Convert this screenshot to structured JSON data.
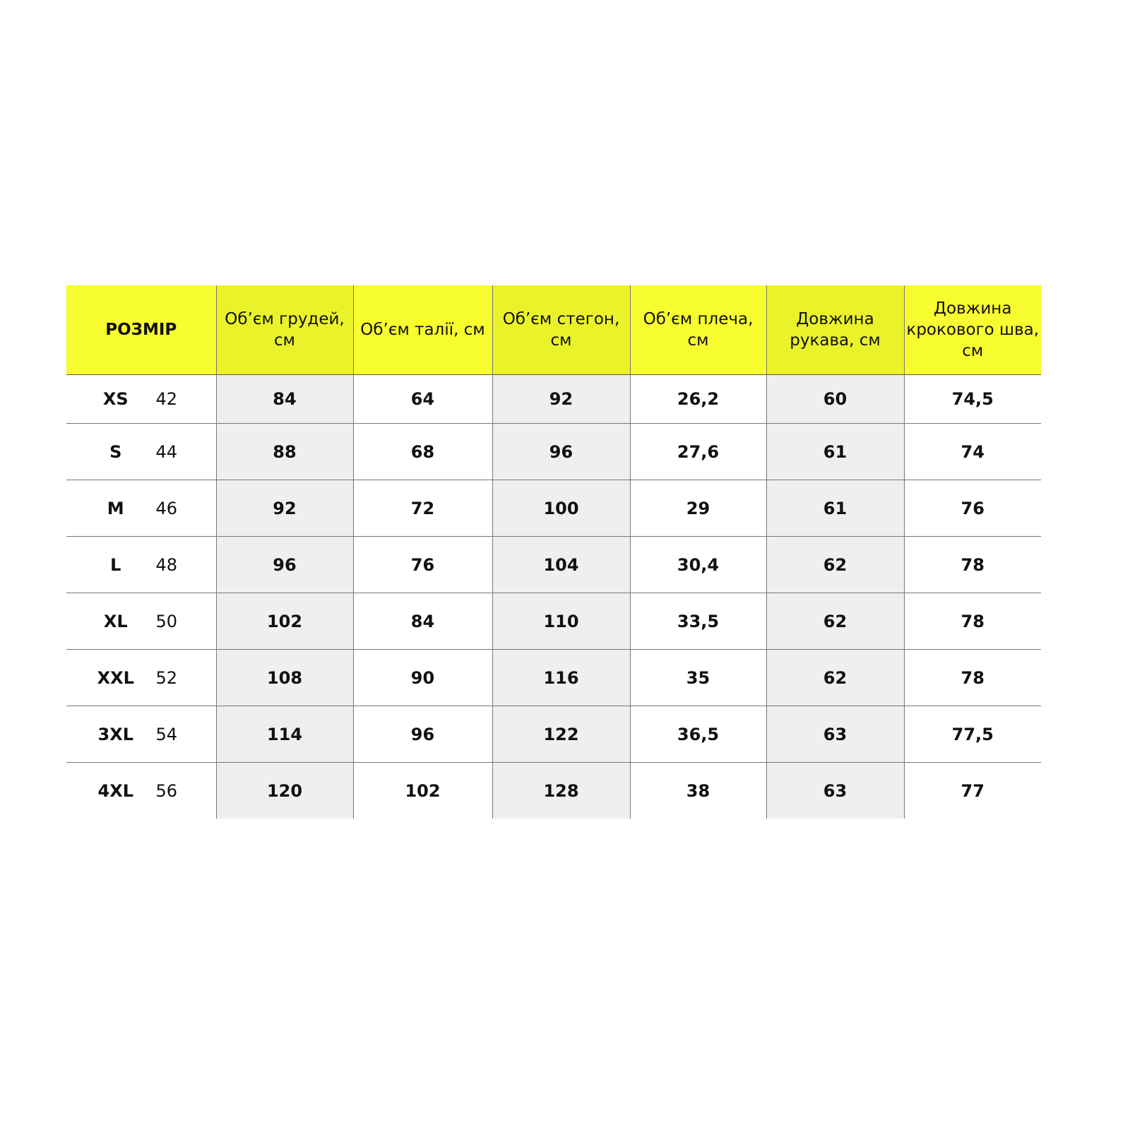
{
  "colors": {
    "header": "#f7fd2e",
    "header_alt": "#eaf32a",
    "cell_alt": "#efefef"
  },
  "headers": [
    "РОЗМІР",
    "Об’єм грудей, см",
    "Об’єм талії, см",
    "Об’єм стегон, см",
    "Об’єм плеча, см",
    "Довжина рукава, см",
    "Довжина крокового шва, см"
  ],
  "rows": [
    {
      "size": "XS",
      "ua": "42",
      "values": [
        "84",
        "64",
        "92",
        "26,2",
        "60",
        "74,5"
      ]
    },
    {
      "size": "S",
      "ua": "44",
      "values": [
        "88",
        "68",
        "96",
        "27,6",
        "61",
        "74"
      ]
    },
    {
      "size": "M",
      "ua": "46",
      "values": [
        "92",
        "72",
        "100",
        "29",
        "61",
        "76"
      ]
    },
    {
      "size": "L",
      "ua": "48",
      "values": [
        "96",
        "76",
        "104",
        "30,4",
        "62",
        "78"
      ]
    },
    {
      "size": "XL",
      "ua": "50",
      "values": [
        "102",
        "84",
        "110",
        "33,5",
        "62",
        "78"
      ]
    },
    {
      "size": "XXL",
      "ua": "52",
      "values": [
        "108",
        "90",
        "116",
        "35",
        "62",
        "78"
      ]
    },
    {
      "size": "3XL",
      "ua": "54",
      "values": [
        "114",
        "96",
        "122",
        "36,5",
        "63",
        "77,5"
      ]
    },
    {
      "size": "4XL",
      "ua": "56",
      "values": [
        "120",
        "102",
        "128",
        "38",
        "63",
        "77"
      ]
    }
  ]
}
